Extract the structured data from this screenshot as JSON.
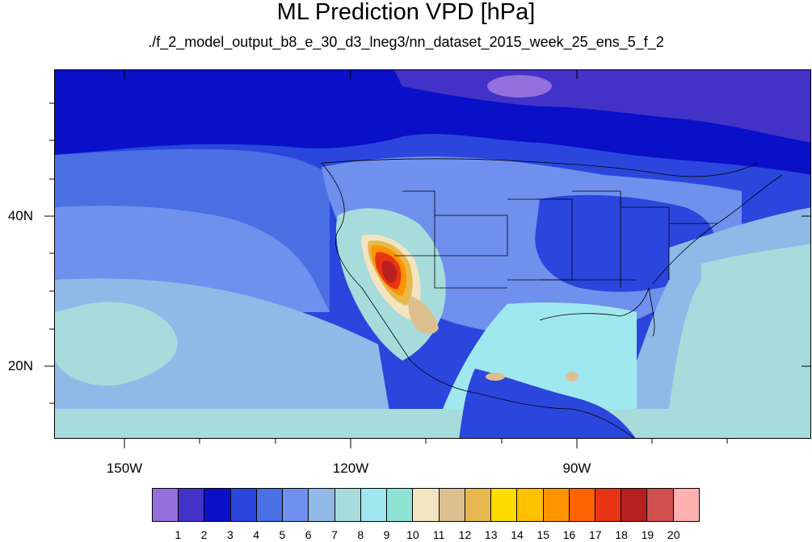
{
  "title": "ML Prediction VPD [hPa]",
  "subtitle": "./f_2_model_output_b8_e_30_d3_lneg3/nn_dataset_2015_week_25_ens_5_f_2",
  "map": {
    "lat_labels": [
      "40N",
      "20N"
    ],
    "lon_labels": [
      "150W",
      "120W",
      "90W"
    ],
    "region": "North America / Eastern Pacific",
    "variable": "Vapor Pressure Deficit",
    "units": "hPa"
  },
  "colorbar": {
    "labels": [
      "1",
      "2",
      "3",
      "4",
      "5",
      "6",
      "7",
      "8",
      "9",
      "10",
      "11",
      "12",
      "13",
      "14",
      "15",
      "16",
      "17",
      "18",
      "19",
      "20"
    ],
    "colors": [
      "#9370db",
      "#4232c8",
      "#0a0fc8",
      "#2a46dc",
      "#4a70e4",
      "#6f90ec",
      "#8fbae8",
      "#a7dcdc",
      "#a0e8f0",
      "#8ee4d4",
      "#f2e4c0",
      "#dcc090",
      "#e8b850",
      "#ffdc00",
      "#ffc000",
      "#ff9400",
      "#ff6400",
      "#e83414",
      "#b82020",
      "#d05050",
      "#ffb0b0"
    ]
  }
}
